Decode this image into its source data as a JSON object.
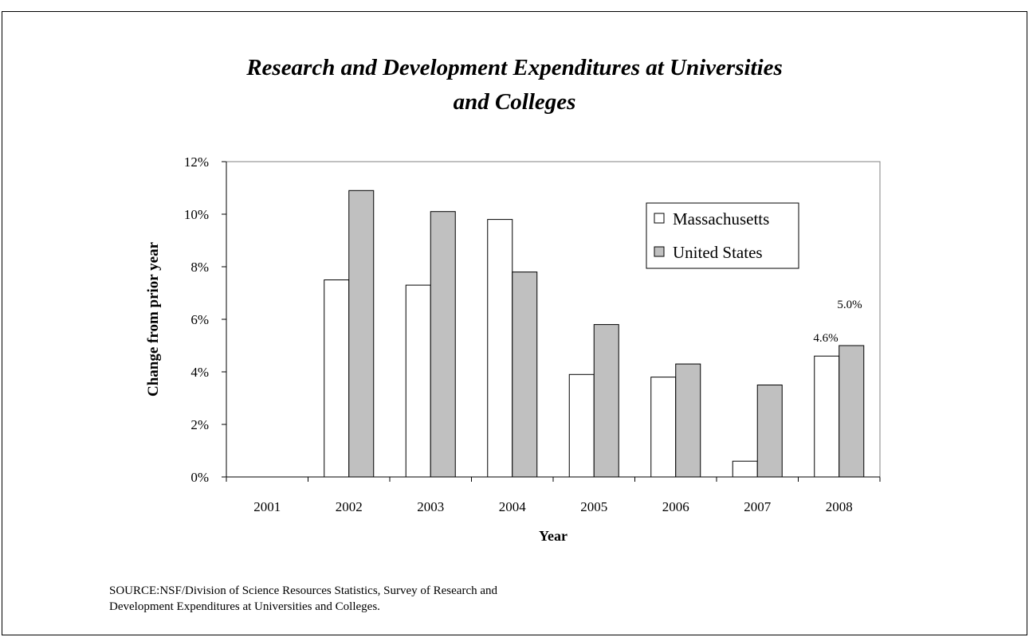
{
  "chart_data": {
    "type": "bar",
    "title_line1": "Research and Development Expenditures at Universities",
    "title_line2": "and Colleges",
    "xlabel": "Year",
    "ylabel": "Change from prior year",
    "categories": [
      "2001",
      "2002",
      "2003",
      "2004",
      "2005",
      "2006",
      "2007",
      "2008"
    ],
    "ylim": [
      0,
      12
    ],
    "yticks": [
      "0%",
      "2%",
      "4%",
      "6%",
      "8%",
      "10%",
      "12%"
    ],
    "series": [
      {
        "name": "Massachusetts",
        "color": "#ffffff",
        "values": [
          null,
          7.5,
          7.3,
          9.8,
          3.9,
          3.8,
          0.6,
          4.6
        ]
      },
      {
        "name": "United States",
        "color": "#c0c0c0",
        "values": [
          null,
          10.9,
          10.1,
          7.8,
          5.8,
          4.3,
          3.5,
          5.0
        ]
      }
    ],
    "data_labels": {
      "massachusetts_2008": "4.6%",
      "united_states_2008": "5.0%"
    },
    "legend_position": "top-right",
    "grid": false
  },
  "source_line1": "SOURCE:NSF/Division of Science Resources Statistics, Survey of Research and",
  "source_line2": "Development Expenditures at Universities and Colleges."
}
